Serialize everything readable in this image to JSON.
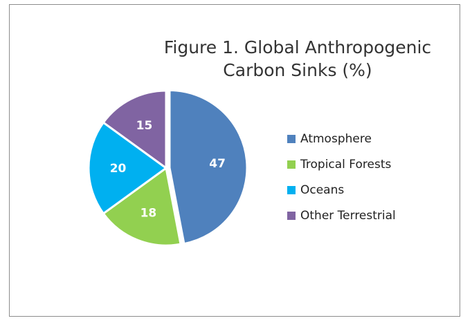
{
  "chart_data": {
    "type": "pie",
    "title": [
      "Figure 1. Global Anthropogenic",
      "Carbon Sinks (%)"
    ],
    "categories": [
      "Atmosphere",
      "Tropical Forests",
      "Oceans",
      "Other Terrestrial"
    ],
    "values": [
      47,
      18,
      20,
      15
    ],
    "colors": [
      "#4f81bd",
      "#92d050",
      "#00b0f0",
      "#8064a2"
    ],
    "legend_position": "right"
  }
}
